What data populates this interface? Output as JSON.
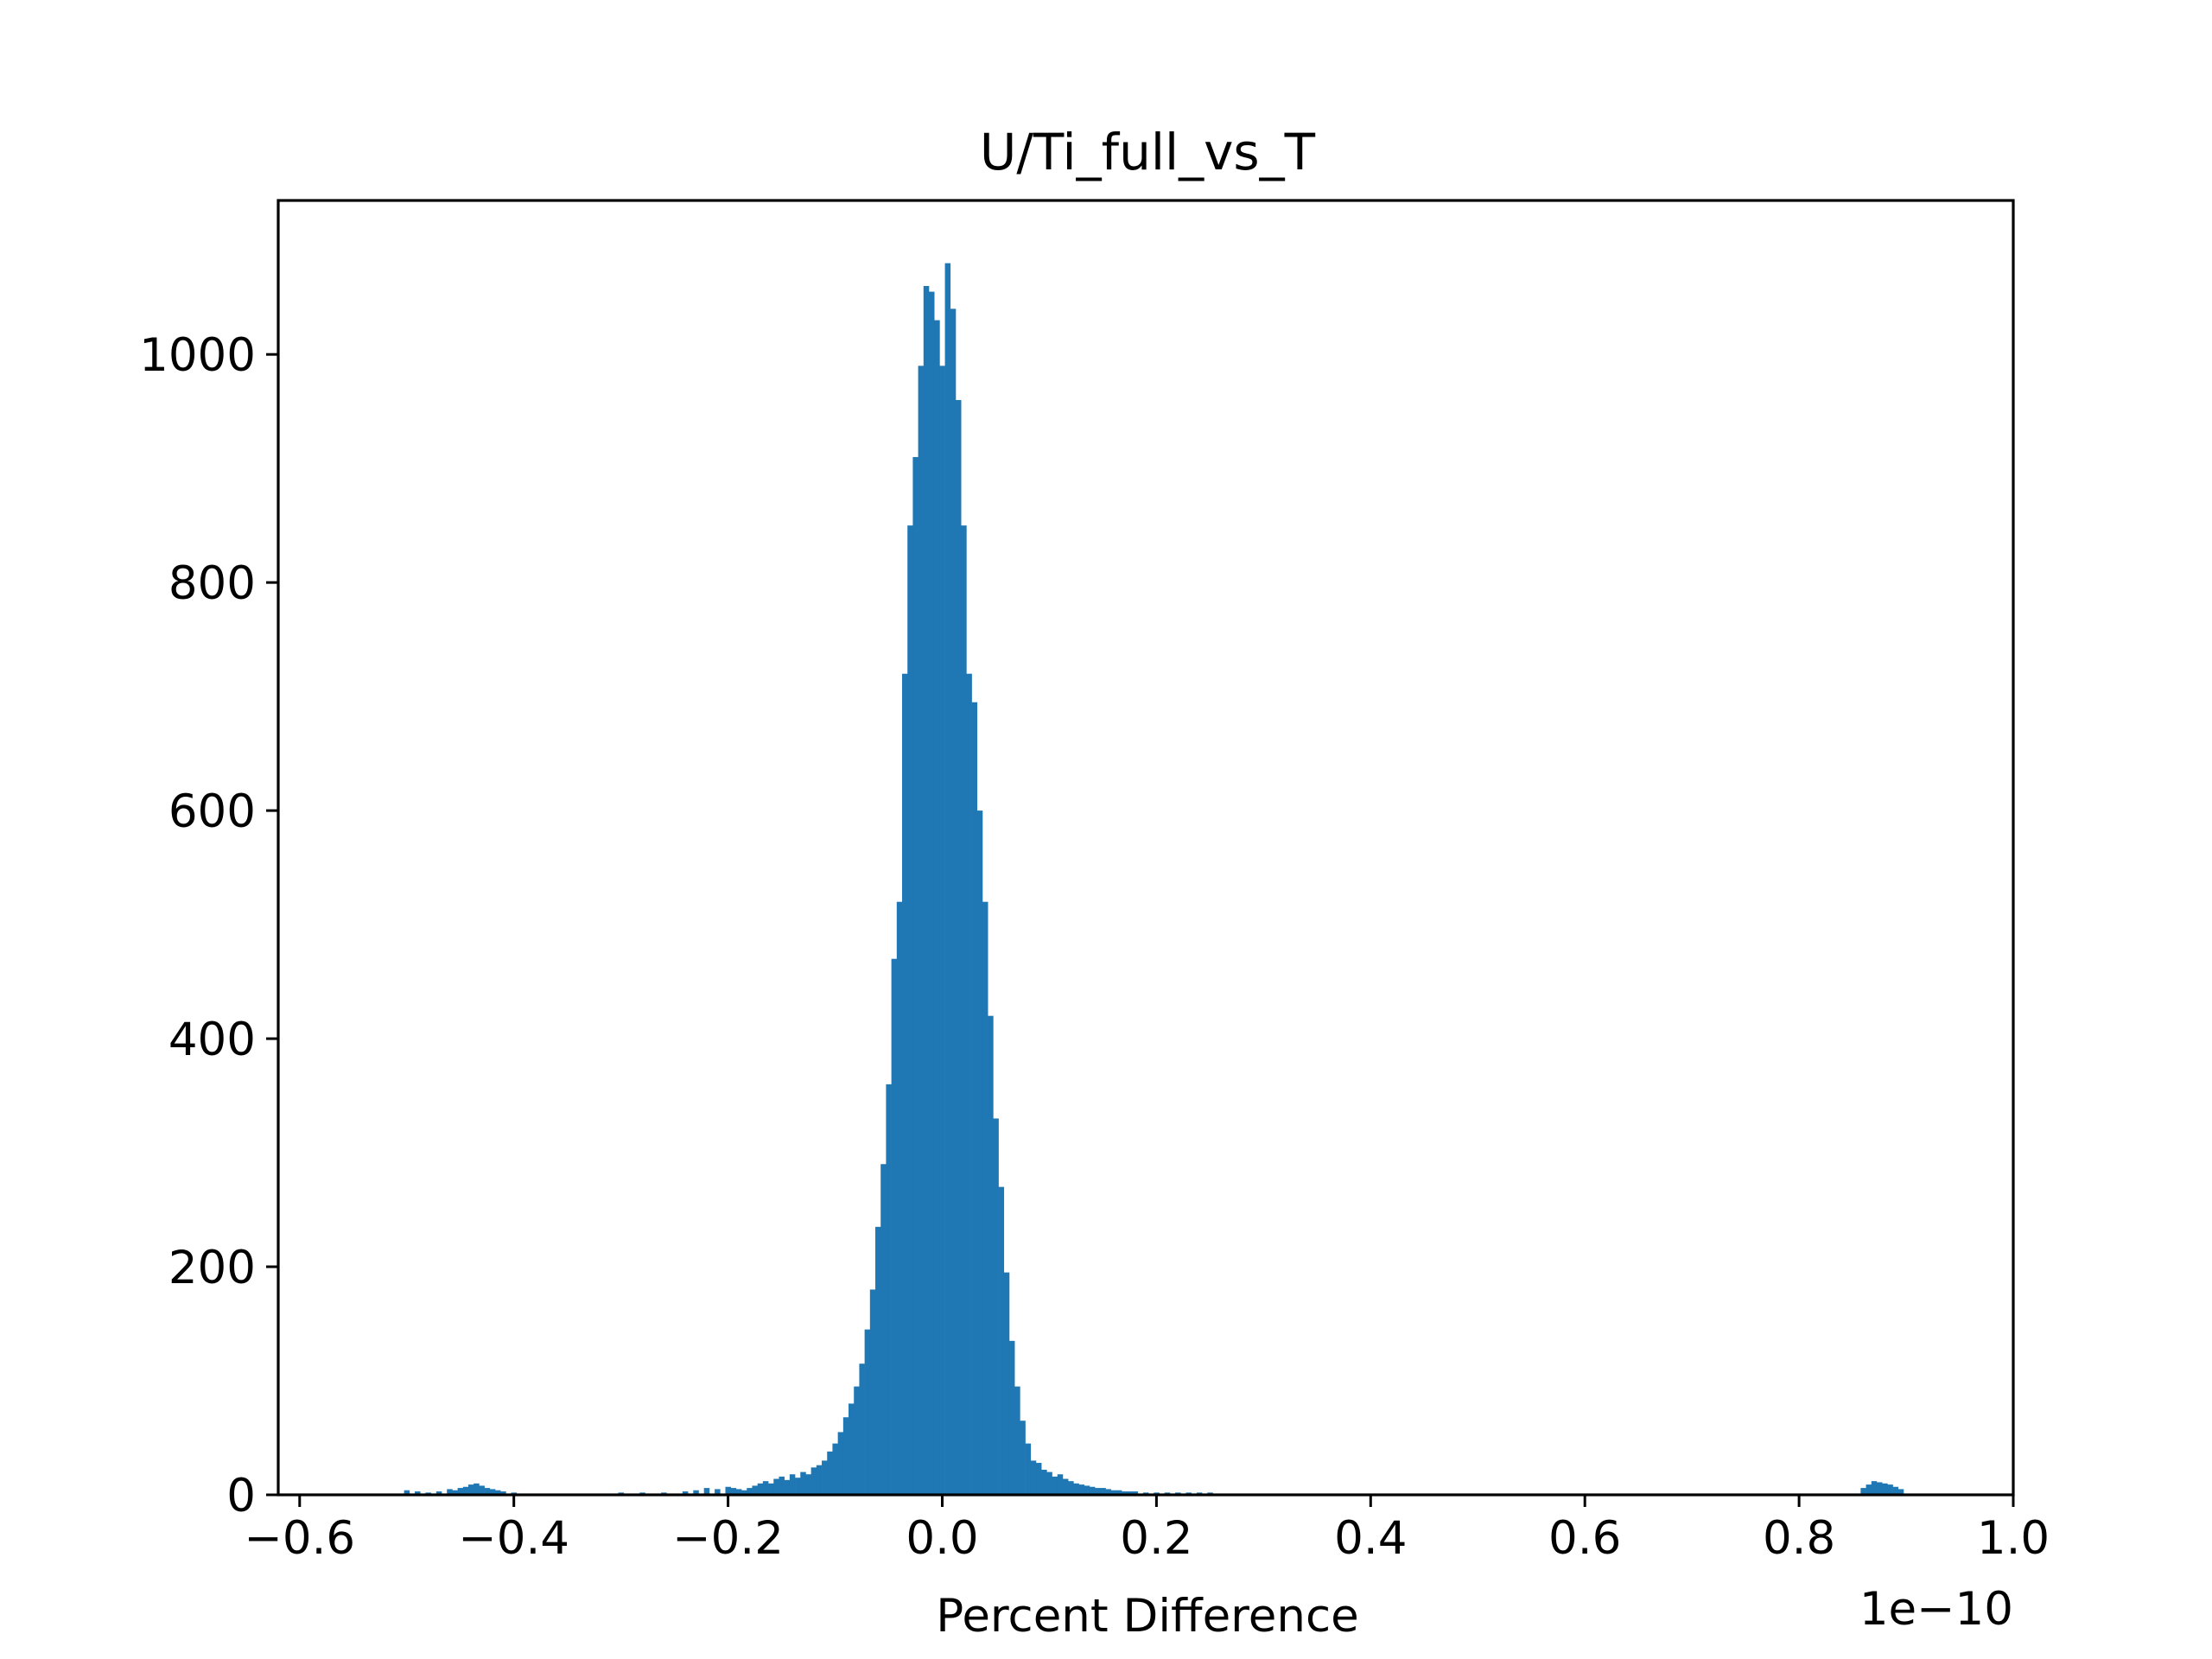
{
  "chart_data": {
    "type": "bar",
    "title": "U/Ti_full_vs_T",
    "xlabel": "Percent Difference",
    "ylabel": "",
    "x_offset_label": "1e−10",
    "xlim": [
      -0.62,
      1.0
    ],
    "ylim": [
      0,
      1135
    ],
    "grid": false,
    "xticks": [
      -0.6,
      -0.4,
      -0.2,
      0.0,
      0.2,
      0.4,
      0.6,
      0.8,
      1.0
    ],
    "xtick_labels": [
      "−0.6",
      "−0.4",
      "−0.2",
      "0.0",
      "0.2",
      "0.4",
      "0.6",
      "0.8",
      "1.0"
    ],
    "yticks": [
      0,
      200,
      400,
      600,
      800,
      1000
    ],
    "ytick_labels": [
      "0",
      "200",
      "400",
      "600",
      "800",
      "1000"
    ],
    "bar_color": "#1f77b4",
    "bin_width": 0.005,
    "x": [
      -0.5,
      -0.49,
      -0.48,
      -0.47,
      -0.46,
      -0.455,
      -0.45,
      -0.445,
      -0.44,
      -0.435,
      -0.43,
      -0.425,
      -0.42,
      -0.415,
      -0.41,
      -0.4,
      -0.3,
      -0.28,
      -0.26,
      -0.24,
      -0.23,
      -0.22,
      -0.21,
      -0.2,
      -0.195,
      -0.19,
      -0.185,
      -0.18,
      -0.175,
      -0.17,
      -0.165,
      -0.16,
      -0.155,
      -0.15,
      -0.145,
      -0.14,
      -0.135,
      -0.13,
      -0.125,
      -0.12,
      -0.115,
      -0.11,
      -0.105,
      -0.1,
      -0.095,
      -0.09,
      -0.085,
      -0.08,
      -0.075,
      -0.07,
      -0.065,
      -0.06,
      -0.055,
      -0.05,
      -0.045,
      -0.04,
      -0.035,
      -0.03,
      -0.025,
      -0.02,
      -0.015,
      -0.01,
      -0.005,
      0.0,
      0.005,
      0.01,
      0.015,
      0.02,
      0.025,
      0.03,
      0.035,
      0.04,
      0.045,
      0.05,
      0.055,
      0.06,
      0.065,
      0.07,
      0.075,
      0.08,
      0.085,
      0.09,
      0.095,
      0.1,
      0.105,
      0.11,
      0.115,
      0.12,
      0.125,
      0.13,
      0.135,
      0.14,
      0.145,
      0.15,
      0.155,
      0.16,
      0.165,
      0.17,
      0.175,
      0.18,
      0.19,
      0.2,
      0.21,
      0.22,
      0.23,
      0.24,
      0.25,
      0.27,
      0.29,
      0.31,
      0.34,
      0.37,
      0.86,
      0.865,
      0.87,
      0.875,
      0.88,
      0.885,
      0.89,
      0.895
    ],
    "values": [
      4,
      3,
      2,
      3,
      5,
      4,
      6,
      7,
      9,
      10,
      8,
      6,
      5,
      4,
      3,
      2,
      2,
      2,
      2,
      3,
      4,
      6,
      5,
      7,
      6,
      5,
      4,
      6,
      8,
      10,
      12,
      10,
      14,
      16,
      13,
      18,
      15,
      20,
      18,
      24,
      26,
      30,
      38,
      45,
      55,
      68,
      80,
      95,
      115,
      145,
      180,
      235,
      290,
      360,
      470,
      520,
      720,
      850,
      910,
      990,
      1060,
      1055,
      1030,
      990,
      1080,
      1040,
      960,
      850,
      720,
      695,
      600,
      520,
      420,
      330,
      270,
      195,
      135,
      95,
      65,
      45,
      30,
      28,
      22,
      20,
      16,
      18,
      14,
      12,
      10,
      9,
      8,
      7,
      6,
      6,
      5,
      4,
      4,
      3,
      3,
      3,
      2,
      2,
      2,
      2,
      2,
      2,
      2,
      1,
      1,
      1,
      1,
      1,
      6,
      9,
      12,
      11,
      10,
      9,
      7,
      5
    ]
  }
}
